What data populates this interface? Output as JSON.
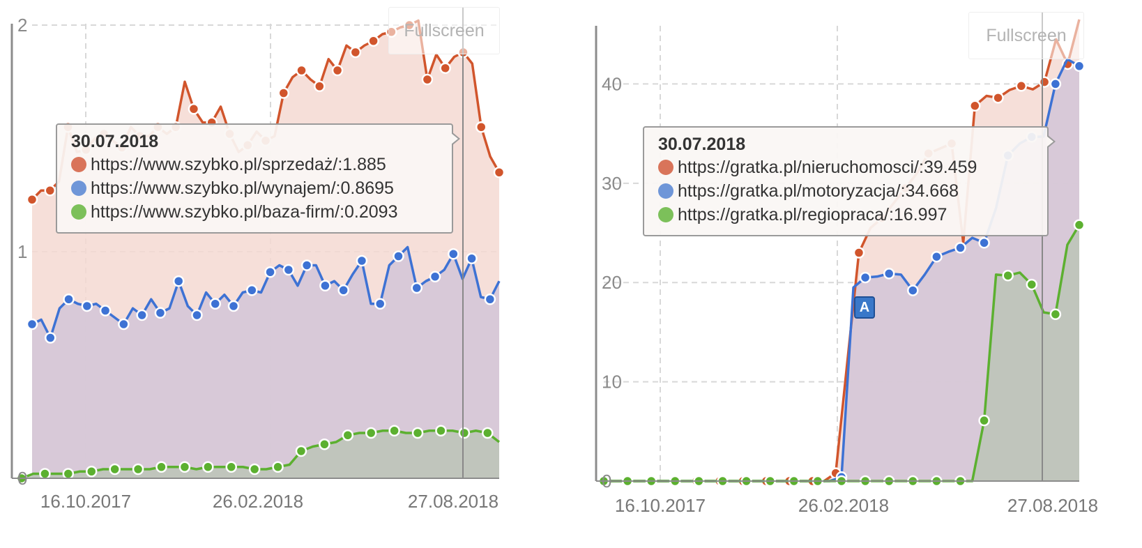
{
  "chart_data": [
    {
      "type": "area",
      "id": "szybko",
      "title": "",
      "xlabel": "",
      "ylabel": "",
      "ylim": [
        0,
        2
      ],
      "y_ticks": [
        "0",
        "1",
        "2"
      ],
      "x_ticks": [
        "16.10.2017",
        "26.02.2018",
        "27.08.2018"
      ],
      "grid": true,
      "stacked": false,
      "fullscreen_label": "Fullscreen",
      "tooltip": {
        "date": "30.07.2018",
        "rows": [
          {
            "label": "https://www.szybko.pl/sprzedaż/",
            "value": "1.885",
            "color": "#d9745a"
          },
          {
            "label": "https://www.szybko.pl/wynajem/",
            "value": "0.8695",
            "color": "#6f96d8"
          },
          {
            "label": "https://www.szybko.pl/baza-firm/",
            "value": "0.2093",
            "color": "#7cc05a"
          }
        ]
      },
      "series": [
        {
          "name": "https://www.szybko.pl/sprzedaż/",
          "color": "#d1552c",
          "fill": "#f5d9d2",
          "values": [
            1.23,
            1.27,
            1.27,
            1.31,
            1.55,
            1.44,
            1.45,
            1.5,
            1.52,
            1.49,
            1.46,
            1.55,
            1.51,
            1.51,
            1.55,
            1.52,
            1.55,
            1.75,
            1.63,
            1.57,
            1.57,
            1.64,
            1.52,
            1.44,
            1.47,
            1.53,
            1.49,
            1.51,
            1.7,
            1.77,
            1.8,
            1.76,
            1.73,
            1.85,
            1.8,
            1.91,
            1.88,
            1.91,
            1.93,
            1.96,
            1.97,
            1.99,
            2.0,
            2.02,
            1.76,
            1.87,
            1.81,
            1.86,
            1.88,
            1.83,
            1.55,
            1.42,
            1.35
          ]
        },
        {
          "name": "https://www.szybko.pl/wynajem/",
          "color": "#3d72d4",
          "fill": "#d2c6d7",
          "values": [
            0.68,
            0.7,
            0.62,
            0.75,
            0.79,
            0.77,
            0.76,
            0.77,
            0.74,
            0.71,
            0.68,
            0.75,
            0.72,
            0.79,
            0.73,
            0.75,
            0.87,
            0.76,
            0.72,
            0.82,
            0.77,
            0.81,
            0.76,
            0.82,
            0.83,
            0.82,
            0.91,
            0.94,
            0.92,
            0.85,
            0.94,
            0.94,
            0.85,
            0.87,
            0.83,
            0.9,
            0.96,
            0.77,
            0.77,
            0.94,
            0.98,
            1.02,
            0.84,
            0.87,
            0.89,
            0.92,
            0.99,
            0.88,
            0.97,
            0.8,
            0.79,
            0.87
          ]
        },
        {
          "name": "https://www.szybko.pl/baza-firm/",
          "color": "#5cb030",
          "fill": "#bcc4b7",
          "values": [
            0.0,
            0.02,
            0.02,
            0.02,
            0.02,
            0.03,
            0.03,
            0.04,
            0.04,
            0.04,
            0.04,
            0.04,
            0.05,
            0.05,
            0.05,
            0.04,
            0.05,
            0.05,
            0.05,
            0.05,
            0.04,
            0.04,
            0.05,
            0.06,
            0.12,
            0.14,
            0.15,
            0.16,
            0.19,
            0.2,
            0.2,
            0.21,
            0.21,
            0.2,
            0.2,
            0.21,
            0.21,
            0.21,
            0.2,
            0.21,
            0.2,
            0.16
          ]
        }
      ]
    },
    {
      "type": "area",
      "id": "gratka",
      "title": "",
      "xlabel": "",
      "ylabel": "",
      "ylim": [
        0,
        46
      ],
      "y_ticks": [
        "0",
        "10",
        "20",
        "30",
        "40"
      ],
      "x_ticks": [
        "16.10.2017",
        "26.02.2018",
        "27.08.2018"
      ],
      "grid": true,
      "stacked": false,
      "fullscreen_label": "Fullscreen",
      "annotation_flag": "A",
      "tooltip": {
        "date": "30.07.2018",
        "rows": [
          {
            "label": "https://gratka.pl/nieruchomosci/",
            "value": "39.459",
            "color": "#d9745a"
          },
          {
            "label": "https://gratka.pl/motoryzacja/",
            "value": "34.668",
            "color": "#6f96d8"
          },
          {
            "label": "https://gratka.pl/regiopraca/",
            "value": "16.997",
            "color": "#7cc05a"
          }
        ]
      },
      "series": [
        {
          "name": "https://gratka.pl/nieruchomosci/",
          "color": "#d1552c",
          "fill": "#f5d9d2",
          "values": [
            0,
            0,
            0,
            0,
            0,
            0,
            0,
            0,
            0,
            0,
            0,
            0,
            0,
            0,
            0,
            0,
            0,
            0,
            0,
            0,
            0.8,
            12,
            23,
            25.5,
            26.5,
            28,
            29.5,
            31,
            33,
            33.5,
            34,
            24,
            37.8,
            38.8,
            38.6,
            39.4,
            39.8,
            39.459,
            40.2,
            44.5,
            42,
            46.5
          ]
        },
        {
          "name": "https://gratka.pl/motoryzacja/",
          "color": "#3d72d4",
          "fill": "#d2c6d7",
          "values": [
            0,
            0,
            0,
            0,
            0,
            0,
            0,
            0,
            0,
            0,
            0,
            0,
            0,
            0,
            0,
            0,
            0,
            0,
            0,
            0,
            0.4,
            19.5,
            20.5,
            20.6,
            20.9,
            20.8,
            19.2,
            20.8,
            22.6,
            23.1,
            23.5,
            24.5,
            24.0,
            27.5,
            32.8,
            34.0,
            34.668,
            34.7,
            40,
            42.5,
            41.8
          ]
        },
        {
          "name": "https://gratka.pl/regiopraca/",
          "color": "#5cb030",
          "fill": "#bcc4b7",
          "values": [
            0,
            0,
            0,
            0,
            0,
            0,
            0,
            0,
            0,
            0,
            0,
            0,
            0,
            0,
            0,
            0,
            0,
            0,
            0,
            0,
            0,
            0,
            0,
            0,
            0,
            0,
            0,
            0,
            0,
            0,
            0,
            0,
            6.1,
            20.8,
            20.7,
            21.0,
            19.8,
            16.997,
            16.8,
            23.8,
            25.8
          ]
        }
      ]
    }
  ]
}
